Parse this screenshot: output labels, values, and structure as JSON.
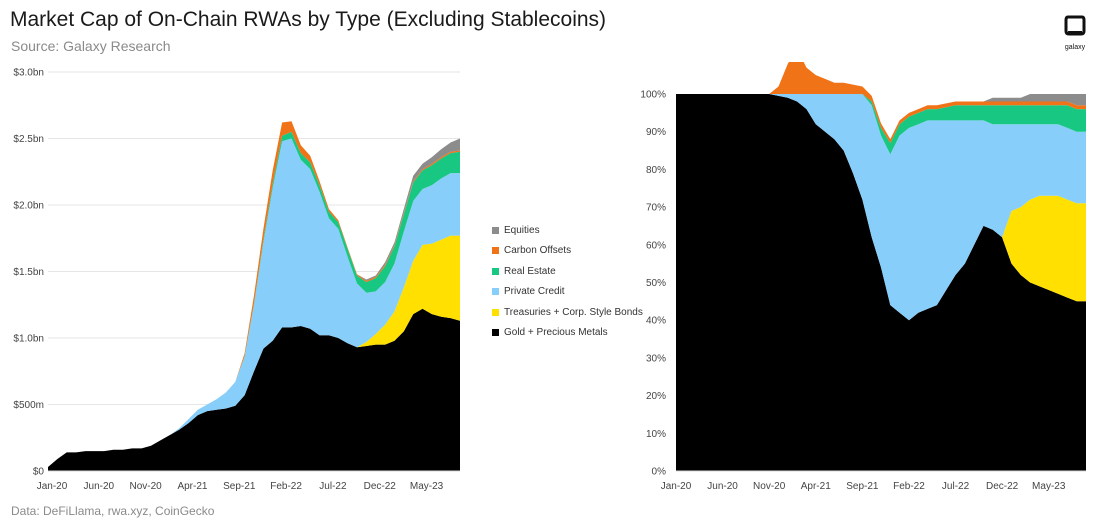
{
  "header": {
    "title": "Market Cap of On-Chain RWAs by Type (Excluding Stablecoins)",
    "subtitle": "Source: Galaxy Research",
    "logo_text": "galaxy"
  },
  "footer": {
    "text": "Data: DeFiLlama, rwa.xyz, CoinGecko"
  },
  "colors": {
    "gold": "#000000",
    "treasuries": "#FFE000",
    "private_credit": "#87CEFA",
    "real_estate": "#18C782",
    "carbon": "#F07318",
    "equities": "#8C8C8C"
  },
  "chart_data": [
    {
      "type": "area",
      "stacked": true,
      "title": "Market Cap of On-Chain RWAs by Type (Excluding Stablecoins)",
      "xlabel": "",
      "ylabel": "",
      "ylim": [
        0,
        3.0
      ],
      "y_unit": "$bn",
      "ytick_labels": [
        "$0",
        "$500m",
        "$1.0bn",
        "$1.5bn",
        "$2.0bn",
        "$2.5bn",
        "$3.0bn"
      ],
      "ytick_values": [
        0,
        0.5,
        1.0,
        1.5,
        2.0,
        2.5,
        3.0
      ],
      "xtick_labels": [
        "Jan-20",
        "Jun-20",
        "Nov-20",
        "Apr-21",
        "Sep-21",
        "Feb-22",
        "Jul-22",
        "Dec-22",
        "May-23"
      ],
      "xtick_values": [
        0,
        5,
        10,
        15,
        20,
        25,
        30,
        35,
        40
      ],
      "grid": true,
      "x": [
        0,
        1,
        2,
        3,
        4,
        5,
        6,
        7,
        8,
        9,
        10,
        11,
        12,
        13,
        14,
        15,
        16,
        17,
        18,
        19,
        20,
        21,
        22,
        23,
        24,
        25,
        26,
        27,
        28,
        29,
        30,
        31,
        32,
        33,
        34,
        35,
        36,
        37,
        38,
        39,
        40,
        41,
        42,
        43,
        44
      ],
      "series": [
        {
          "name": "Gold + Precious Metals",
          "color_key": "gold",
          "values": [
            0.03,
            0.09,
            0.14,
            0.14,
            0.15,
            0.15,
            0.15,
            0.16,
            0.16,
            0.17,
            0.17,
            0.19,
            0.23,
            0.27,
            0.31,
            0.36,
            0.42,
            0.45,
            0.46,
            0.47,
            0.49,
            0.57,
            0.75,
            0.92,
            0.98,
            1.08,
            1.08,
            1.09,
            1.07,
            1.02,
            1.02,
            1.0,
            0.96,
            0.93,
            0.94,
            0.95,
            0.95,
            0.98,
            1.05,
            1.18,
            1.22,
            1.18,
            1.16,
            1.15,
            1.13
          ]
        },
        {
          "name": "Treasuries + Corp. Style Bonds",
          "color_key": "treasuries",
          "values": [
            0,
            0,
            0,
            0,
            0,
            0,
            0,
            0,
            0,
            0,
            0,
            0,
            0,
            0,
            0,
            0,
            0,
            0,
            0,
            0,
            0,
            0,
            0,
            0,
            0,
            0,
            0,
            0,
            0,
            0,
            0,
            0,
            0,
            0,
            0.03,
            0.08,
            0.15,
            0.22,
            0.33,
            0.4,
            0.48,
            0.53,
            0.58,
            0.62,
            0.64
          ]
        },
        {
          "name": "Private Credit",
          "color_key": "private_credit",
          "values": [
            0,
            0,
            0,
            0,
            0,
            0,
            0,
            0,
            0,
            0,
            0,
            0,
            0,
            0,
            0.01,
            0.03,
            0.04,
            0.05,
            0.08,
            0.12,
            0.18,
            0.29,
            0.5,
            0.8,
            1.15,
            1.4,
            1.42,
            1.25,
            1.2,
            1.08,
            0.88,
            0.82,
            0.65,
            0.48,
            0.37,
            0.32,
            0.32,
            0.36,
            0.42,
            0.45,
            0.42,
            0.44,
            0.46,
            0.47,
            0.47
          ]
        },
        {
          "name": "Real Estate",
          "color_key": "real_estate",
          "values": [
            0,
            0,
            0,
            0,
            0,
            0,
            0,
            0,
            0,
            0,
            0,
            0,
            0,
            0,
            0,
            0,
            0,
            0,
            0,
            0,
            0,
            0.005,
            0.01,
            0.02,
            0.03,
            0.04,
            0.05,
            0.05,
            0.05,
            0.05,
            0.05,
            0.05,
            0.06,
            0.06,
            0.08,
            0.1,
            0.12,
            0.13,
            0.13,
            0.14,
            0.14,
            0.15,
            0.15,
            0.15,
            0.16
          ]
        },
        {
          "name": "Carbon Offsets",
          "color_key": "carbon",
          "values": [
            0,
            0,
            0,
            0,
            0,
            0,
            0,
            0,
            0,
            0,
            0,
            0,
            0,
            0,
            0,
            0,
            0,
            0,
            0,
            0,
            0,
            0.02,
            0.06,
            0.08,
            0.1,
            0.1,
            0.08,
            0.06,
            0.05,
            0.03,
            0.02,
            0.015,
            0.01,
            0.01,
            0.01,
            0.01,
            0.01,
            0.01,
            0.01,
            0.01,
            0.01,
            0.01,
            0.01,
            0.01,
            0.01
          ]
        },
        {
          "name": "Equities",
          "color_key": "equities",
          "values": [
            0,
            0,
            0,
            0,
            0,
            0,
            0,
            0,
            0,
            0,
            0,
            0,
            0,
            0,
            0,
            0,
            0,
            0,
            0,
            0,
            0,
            0,
            0,
            0,
            0,
            0,
            0,
            0,
            0,
            0,
            0,
            0,
            0,
            0,
            0.01,
            0.01,
            0.02,
            0.02,
            0.03,
            0.04,
            0.04,
            0.05,
            0.06,
            0.07,
            0.09
          ]
        }
      ]
    },
    {
      "type": "area",
      "stacked": true,
      "normalized": true,
      "title": "",
      "xlabel": "",
      "ylabel": "",
      "ylim": [
        0,
        100
      ],
      "y_unit": "%",
      "ytick_labels": [
        "0%",
        "10%",
        "20%",
        "30%",
        "40%",
        "50%",
        "60%",
        "70%",
        "80%",
        "90%",
        "100%"
      ],
      "ytick_values": [
        0,
        10,
        20,
        30,
        40,
        50,
        60,
        70,
        80,
        90,
        100
      ],
      "xtick_labels": [
        "Jan-20",
        "Jun-20",
        "Nov-20",
        "Apr-21",
        "Sep-21",
        "Feb-22",
        "Jul-22",
        "Dec-22",
        "May-23"
      ],
      "xtick_values": [
        0,
        5,
        10,
        15,
        20,
        25,
        30,
        35,
        40
      ],
      "grid": false,
      "x": [
        0,
        1,
        2,
        3,
        4,
        5,
        6,
        7,
        8,
        9,
        10,
        11,
        12,
        13,
        14,
        15,
        16,
        17,
        18,
        19,
        20,
        21,
        22,
        23,
        24,
        25,
        26,
        27,
        28,
        29,
        30,
        31,
        32,
        33,
        34,
        35,
        36,
        37,
        38,
        39,
        40,
        41,
        42,
        43,
        44
      ],
      "series": [
        {
          "name": "Gold + Precious Metals",
          "color_key": "gold",
          "values": [
            100,
            100,
            100,
            100,
            100,
            100,
            100,
            100,
            100,
            100,
            100,
            99.5,
            99,
            98,
            96,
            92,
            90,
            88,
            85,
            79,
            72,
            62,
            54,
            44,
            42,
            40,
            42,
            43,
            44,
            48,
            52,
            55,
            60,
            65,
            64,
            62,
            55,
            52,
            50,
            49,
            48,
            47,
            46,
            45,
            45
          ]
        },
        {
          "name": "Treasuries + Corp. Style Bonds",
          "color_key": "treasuries",
          "values": [
            0,
            0,
            0,
            0,
            0,
            0,
            0,
            0,
            0,
            0,
            0,
            0,
            0,
            0,
            0,
            0,
            0,
            0,
            0,
            0,
            0,
            0,
            0,
            0,
            0,
            0,
            0,
            0,
            0,
            0,
            0,
            0,
            0,
            0,
            0,
            0,
            14,
            18,
            22,
            24,
            25,
            26,
            26,
            26,
            26
          ]
        },
        {
          "name": "Private Credit",
          "color_key": "private_credit",
          "values": [
            0,
            0,
            0,
            0,
            0,
            0,
            0,
            0,
            0,
            0,
            0,
            0.5,
            1,
            2,
            4,
            8,
            10,
            12,
            15,
            21,
            28,
            35,
            35,
            40,
            47,
            51,
            50,
            50,
            49,
            45,
            41,
            38,
            33,
            28,
            28,
            30,
            23,
            22,
            20,
            19,
            19,
            19,
            19,
            19,
            19
          ]
        },
        {
          "name": "Real Estate",
          "color_key": "real_estate",
          "values": [
            0,
            0,
            0,
            0,
            0,
            0,
            0,
            0,
            0,
            0,
            0,
            0,
            0,
            0,
            0,
            0,
            0,
            0,
            0,
            0,
            0,
            1,
            2,
            3,
            3,
            3,
            3,
            3,
            3,
            3.5,
            4,
            4,
            4,
            4,
            5,
            5,
            5,
            5,
            5,
            5,
            5,
            5,
            6,
            6,
            6
          ]
        },
        {
          "name": "Carbon Offsets",
          "color_key": "carbon",
          "values": [
            0,
            0,
            0,
            0,
            0,
            0,
            0,
            0,
            0,
            0,
            0,
            2,
            8,
            12,
            7,
            5,
            4,
            3,
            3,
            2.5,
            2,
            1.5,
            1.2,
            1,
            1,
            1,
            1,
            1,
            1,
            1,
            1,
            1,
            1,
            1,
            1,
            1,
            1,
            1,
            1,
            1,
            1,
            1,
            1,
            1,
            1
          ]
        },
        {
          "name": "Equities",
          "color_key": "equities",
          "values": [
            0,
            0,
            0,
            0,
            0,
            0,
            0,
            0,
            0,
            0,
            0,
            0,
            0,
            0,
            0,
            0,
            0,
            0,
            0,
            0,
            0,
            0,
            0,
            0,
            0,
            0,
            0,
            0,
            0,
            0,
            0,
            0,
            0,
            0,
            1,
            1,
            1,
            1,
            2,
            2,
            2,
            2,
            2,
            3,
            3
          ]
        }
      ]
    }
  ],
  "legend": {
    "placement": "center-between-charts",
    "items": [
      {
        "label": "Equities",
        "color_key": "equities"
      },
      {
        "label": "Carbon Offsets",
        "color_key": "carbon"
      },
      {
        "label": "Real Estate",
        "color_key": "real_estate"
      },
      {
        "label": "Private Credit",
        "color_key": "private_credit"
      },
      {
        "label": "Treasuries + Corp. Style Bonds",
        "color_key": "treasuries"
      },
      {
        "label": "Gold + Precious Metals",
        "color_key": "gold"
      }
    ]
  }
}
